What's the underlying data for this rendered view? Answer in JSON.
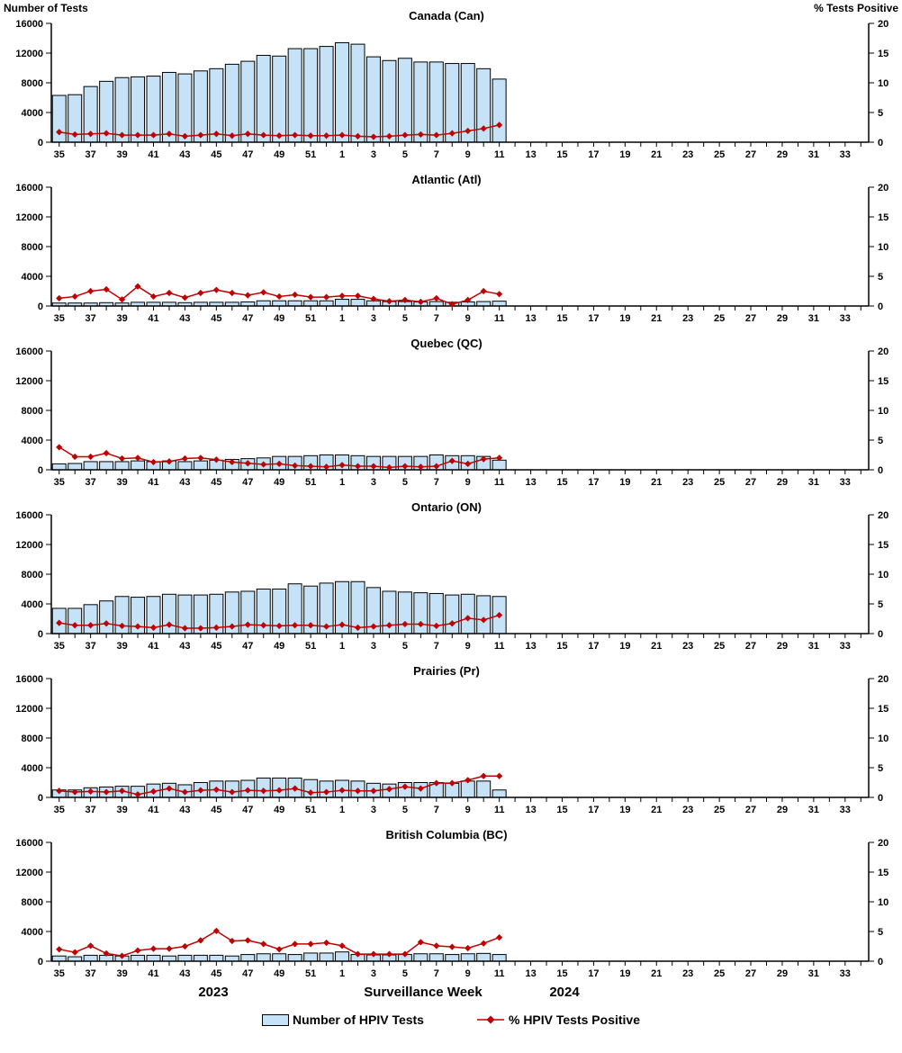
{
  "header": {
    "left": "Number of Tests",
    "right": "% Tests Positive"
  },
  "x_axis": {
    "week_slots": [
      35,
      36,
      37,
      38,
      39,
      40,
      41,
      42,
      43,
      44,
      45,
      46,
      47,
      48,
      49,
      50,
      51,
      52,
      1,
      2,
      3,
      4,
      5,
      6,
      7,
      8,
      9,
      10,
      11,
      12,
      13,
      14,
      15,
      16,
      17,
      18,
      19,
      20,
      21,
      22,
      23,
      24,
      25,
      26,
      27,
      28,
      29,
      30,
      31,
      32,
      33,
      34
    ],
    "year_left": "2023",
    "title": "Surveillance Week",
    "year_right": "2024"
  },
  "y_left": {
    "min": 0,
    "max": 16000,
    "ticks": [
      0,
      4000,
      8000,
      12000,
      16000
    ]
  },
  "y_right": {
    "min": 0,
    "max": 20,
    "ticks": [
      0,
      5,
      10,
      15,
      20
    ]
  },
  "colors": {
    "bar_fill": "#C6E2F6",
    "bar_stroke": "#000000",
    "line": "#C00000",
    "text": "#000000"
  },
  "legend": {
    "bar_label": "Number of HPIV Tests",
    "line_label": "% HPIV Tests Positive"
  },
  "categories": [
    35,
    36,
    37,
    38,
    39,
    40,
    41,
    42,
    43,
    44,
    45,
    46,
    47,
    48,
    49,
    50,
    51,
    52,
    1,
    2,
    3,
    4,
    5,
    6,
    7,
    8,
    9,
    10,
    11
  ],
  "chart_data": [
    {
      "type": "bar",
      "title": "Canada (Can)",
      "xlabel": "Surveillance Week",
      "ylabel_left": "Number of Tests",
      "ylabel_right": "% Tests Positive",
      "ylim_left": [
        0,
        16000
      ],
      "ylim_right": [
        0,
        20
      ],
      "tests": [
        6300,
        6400,
        7500,
        8200,
        8700,
        8800,
        8900,
        9400,
        9200,
        9600,
        9900,
        10500,
        10900,
        11700,
        11600,
        12600,
        12600,
        12900,
        13400,
        13200,
        11500,
        11000,
        11300,
        10800,
        10800,
        10600,
        10600,
        9900,
        8500
      ],
      "pct_positive": [
        1.7,
        1.3,
        1.4,
        1.5,
        1.2,
        1.2,
        1.2,
        1.4,
        1.0,
        1.2,
        1.4,
        1.1,
        1.4,
        1.2,
        1.1,
        1.2,
        1.1,
        1.1,
        1.2,
        1.0,
        0.9,
        1.0,
        1.2,
        1.3,
        1.2,
        1.5,
        1.9,
        2.3,
        2.9
      ]
    },
    {
      "type": "bar",
      "title": "Atlantic (Atl)",
      "ylim_left": [
        0,
        16000
      ],
      "ylim_right": [
        0,
        20
      ],
      "tests": [
        400,
        400,
        400,
        450,
        400,
        500,
        500,
        500,
        450,
        500,
        500,
        500,
        550,
        700,
        700,
        700,
        700,
        700,
        900,
        900,
        700,
        600,
        600,
        550,
        600,
        500,
        550,
        600,
        650
      ],
      "pct_positive": [
        1.3,
        1.6,
        2.5,
        2.8,
        1.1,
        3.3,
        1.6,
        2.2,
        1.4,
        2.2,
        2.7,
        2.2,
        1.8,
        2.3,
        1.6,
        1.9,
        1.5,
        1.5,
        1.7,
        1.7,
        1.2,
        0.8,
        1.0,
        0.7,
        1.3,
        0.3,
        1.0,
        2.5,
        2.0
      ]
    },
    {
      "type": "bar",
      "title": "Quebec (QC)",
      "ylim_left": [
        0,
        16000
      ],
      "ylim_right": [
        0,
        20
      ],
      "tests": [
        800,
        850,
        1100,
        1100,
        1100,
        1200,
        1100,
        1200,
        1100,
        1200,
        1300,
        1400,
        1500,
        1600,
        1800,
        1800,
        1900,
        2000,
        2000,
        1900,
        1800,
        1800,
        1800,
        1800,
        2000,
        1900,
        1900,
        1800,
        1300
      ],
      "pct_positive": [
        3.8,
        2.2,
        2.2,
        2.8,
        1.9,
        2.0,
        1.3,
        1.4,
        1.9,
        2.0,
        1.7,
        1.3,
        1.1,
        0.9,
        1.0,
        0.7,
        0.6,
        0.5,
        0.8,
        0.6,
        0.6,
        0.4,
        0.6,
        0.5,
        0.6,
        1.5,
        1.0,
        1.8,
        2.0
      ]
    },
    {
      "type": "bar",
      "title": "Ontario (ON)",
      "ylim_left": [
        0,
        16000
      ],
      "ylim_right": [
        0,
        20
      ],
      "tests": [
        3400,
        3400,
        3900,
        4400,
        5000,
        4900,
        5000,
        5300,
        5200,
        5200,
        5300,
        5600,
        5700,
        6000,
        6000,
        6700,
        6400,
        6800,
        7000,
        7000,
        6200,
        5700,
        5600,
        5500,
        5400,
        5200,
        5300,
        5100,
        5000
      ],
      "pct_positive": [
        1.8,
        1.4,
        1.4,
        1.7,
        1.3,
        1.2,
        1.0,
        1.5,
        0.9,
        0.9,
        1.0,
        1.2,
        1.5,
        1.4,
        1.3,
        1.4,
        1.4,
        1.2,
        1.5,
        1.0,
        1.2,
        1.4,
        1.6,
        1.6,
        1.3,
        1.7,
        2.6,
        2.3,
        3.1
      ]
    },
    {
      "type": "bar",
      "title": "Prairies (Pr)",
      "ylim_left": [
        0,
        16000
      ],
      "ylim_right": [
        0,
        20
      ],
      "tests": [
        1000,
        1000,
        1300,
        1400,
        1500,
        1500,
        1800,
        1900,
        1700,
        2000,
        2200,
        2200,
        2300,
        2600,
        2600,
        2600,
        2400,
        2200,
        2300,
        2200,
        1900,
        1800,
        2000,
        2000,
        2000,
        1900,
        2200,
        2200,
        1000
      ],
      "pct_positive": [
        1.1,
        0.9,
        1.0,
        0.9,
        1.1,
        0.5,
        1.0,
        1.5,
        0.9,
        1.2,
        1.3,
        0.9,
        1.2,
        1.1,
        1.2,
        1.5,
        0.8,
        0.9,
        1.2,
        1.1,
        1.1,
        1.4,
        1.8,
        1.5,
        2.4,
        2.4,
        2.9,
        3.6,
        3.6
      ]
    },
    {
      "type": "bar",
      "title": "British Columbia (BC)",
      "ylim_left": [
        0,
        16000
      ],
      "ylim_right": [
        0,
        20
      ],
      "tests": [
        700,
        600,
        800,
        800,
        700,
        800,
        800,
        700,
        800,
        800,
        800,
        700,
        900,
        1000,
        1000,
        900,
        1100,
        1100,
        1250,
        900,
        850,
        850,
        900,
        1000,
        1000,
        900,
        1000,
        1050,
        900
      ],
      "pct_positive": [
        2.0,
        1.5,
        2.6,
        1.3,
        0.9,
        1.8,
        2.1,
        2.1,
        2.5,
        3.5,
        5.1,
        3.4,
        3.5,
        2.9,
        2.0,
        2.9,
        2.9,
        3.1,
        2.6,
        1.2,
        1.2,
        1.2,
        1.2,
        3.2,
        2.6,
        2.4,
        2.2,
        3.0,
        4.0
      ]
    }
  ]
}
